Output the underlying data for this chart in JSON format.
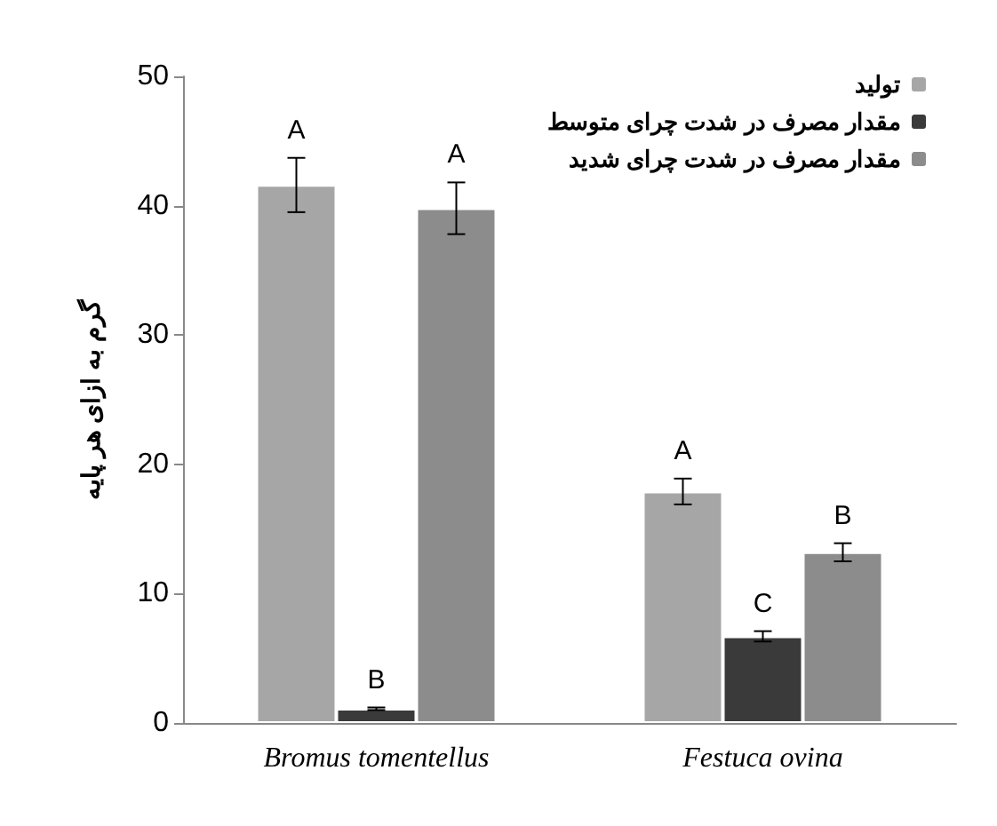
{
  "chart_data": {
    "type": "bar",
    "ylabel": "گرم به ازای هر پایه",
    "categories": [
      "Bromus tomentellus",
      "Festuca ovina"
    ],
    "series": [
      {
        "name": "تولید",
        "color": "#a6a6a6",
        "values": [
          41.6,
          17.9
        ],
        "errors": [
          2.1,
          1.0
        ],
        "value_labels": [
          "A",
          "A"
        ]
      },
      {
        "name": "مقدار مصرف در شدت چرای متوسط",
        "color": "#3a3a3a",
        "values": [
          1.1,
          6.7
        ],
        "errors": [
          0.1,
          0.4
        ],
        "value_labels": [
          "B",
          "C"
        ]
      },
      {
        "name": "مقدار مصرف در شدت چرای شدید",
        "color": "#8c8c8c",
        "values": [
          39.8,
          13.2
        ],
        "errors": [
          2.0,
          0.7
        ],
        "value_labels": [
          "A",
          "B"
        ]
      }
    ],
    "ylim": [
      0,
      50
    ],
    "yticks": [
      0,
      10,
      20,
      30,
      40,
      50
    ],
    "grid": false,
    "legend": "top right"
  }
}
